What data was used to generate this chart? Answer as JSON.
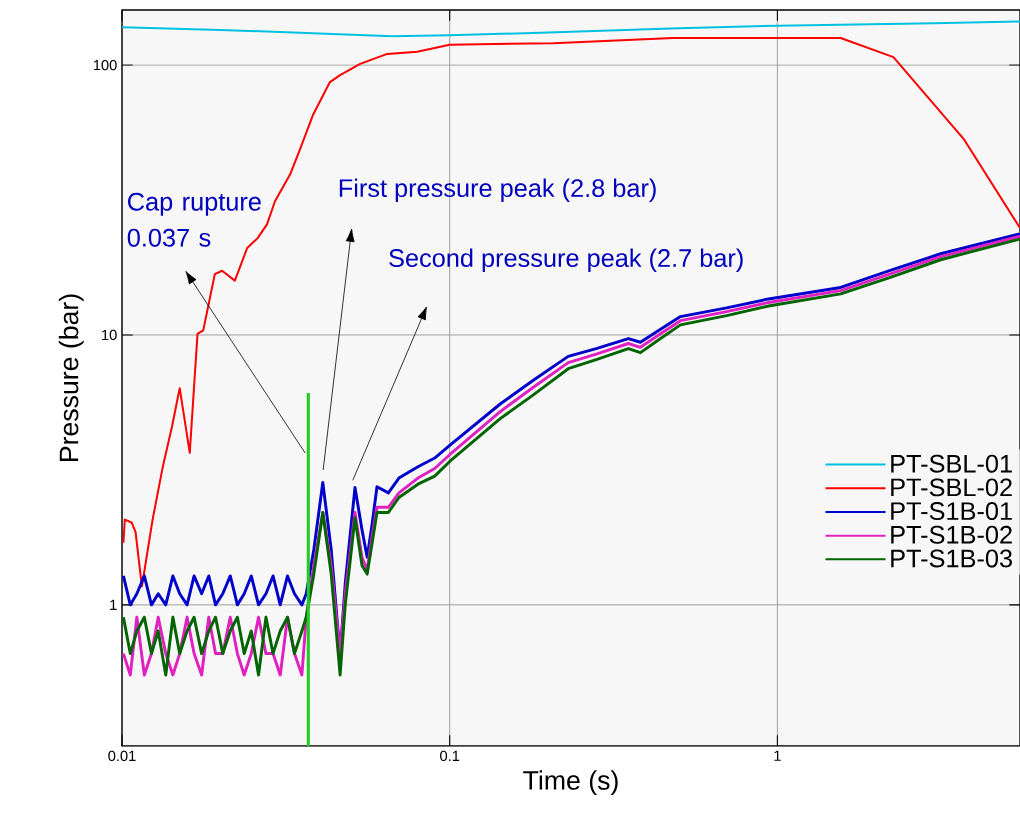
{
  "chart_data": {
    "type": "line",
    "xlabel": "Time (s)",
    "ylabel": "Pressure (bar)",
    "log": "xy",
    "grid": true,
    "legend": "right",
    "marker": "none",
    "line_style": "solid",
    "xlim": [
      0.01,
      5.5
    ],
    "ylim": [
      0.3,
      160
    ],
    "xticks": [
      0.01,
      0.1,
      1
    ],
    "yticks": [
      1,
      10,
      100
    ],
    "annotations": [
      "Cap rupture 0.037 s",
      "First pressure peak (2.8 bar)",
      "Second pressure peak (2.7 bar)"
    ],
    "series": [
      {
        "name": "PT-SBL-01",
        "color": "#00c0e0",
        "x": [
          0.01,
          0.02,
          0.04,
          0.067,
          0.1,
          0.2,
          0.5,
          1,
          1.55,
          3,
          5.5
        ],
        "values": [
          138,
          135,
          131,
          128,
          129,
          132,
          137,
          140,
          141,
          143,
          145
        ]
      },
      {
        "name": "PT-SBL-02",
        "color": "#ff0000",
        "x": [
          0.0101,
          0.0102,
          0.0107,
          0.011,
          0.0115,
          0.0124,
          0.0133,
          0.0142,
          0.015,
          0.0161,
          0.017,
          0.0177,
          0.0192,
          0.0202,
          0.0221,
          0.0241,
          0.0259,
          0.0277,
          0.0293,
          0.0326,
          0.035,
          0.0383,
          0.0431,
          0.0463,
          0.0533,
          0.0645,
          0.0796,
          0.1,
          0.207,
          0.481,
          0.973,
          1.56,
          2.26,
          3.7,
          5.5
        ],
        "values": [
          1.7,
          2.07,
          2.02,
          1.86,
          1.17,
          2.07,
          3.22,
          4.56,
          6.35,
          3.66,
          10.1,
          10.4,
          16.8,
          17.3,
          15.9,
          21,
          22.8,
          25.7,
          31.3,
          39.4,
          49,
          65.5,
          86.5,
          91.8,
          101,
          110,
          112,
          119,
          120.5,
          126,
          126,
          126,
          107,
          53.3,
          24.9
        ]
      },
      {
        "name": "PT-S1B-01",
        "color": "#0000cc",
        "x": [
          0.0101,
          0.0106,
          0.0111,
          0.0117,
          0.0123,
          0.0129,
          0.0136,
          0.0143,
          0.015,
          0.0158,
          0.0166,
          0.0175,
          0.0184,
          0.0193,
          0.0203,
          0.0214,
          0.0225,
          0.0236,
          0.0248,
          0.0261,
          0.0275,
          0.0289,
          0.0304,
          0.032,
          0.0336,
          0.0354,
          0.0365,
          0.0385,
          0.041,
          0.0435,
          0.0463,
          0.048,
          0.0514,
          0.054,
          0.056,
          0.058,
          0.06,
          0.065,
          0.07,
          0.08,
          0.09,
          0.1,
          0.1426,
          0.18,
          0.23,
          0.28,
          0.351,
          0.382,
          0.44,
          0.506,
          0.7,
          0.94,
          1.56,
          2.2,
          3.15,
          5.5
        ],
        "values": [
          1.28,
          1.0,
          1.1,
          1.28,
          1.0,
          1.1,
          1.0,
          1.28,
          1.1,
          1.0,
          1.28,
          1.1,
          1.28,
          1.0,
          1.1,
          1.28,
          1.0,
          1.1,
          1.28,
          1.0,
          1.1,
          1.28,
          1.0,
          1.28,
          1.1,
          1.0,
          1.1,
          1.6,
          2.84,
          1.6,
          0.65,
          1.2,
          2.72,
          1.9,
          1.5,
          2.0,
          2.74,
          2.6,
          2.95,
          3.25,
          3.5,
          3.9,
          5.55,
          6.8,
          8.33,
          8.9,
          9.7,
          9.4,
          10.5,
          11.7,
          12.6,
          13.6,
          15,
          17.3,
          20,
          23.7
        ]
      },
      {
        "name": "PT-S1B-02",
        "color": "#e020c0",
        "x": [
          0.0101,
          0.0106,
          0.0111,
          0.0117,
          0.0123,
          0.0129,
          0.0136,
          0.0143,
          0.015,
          0.0158,
          0.0166,
          0.0175,
          0.0184,
          0.0193,
          0.0203,
          0.0214,
          0.0225,
          0.0236,
          0.0248,
          0.0261,
          0.0275,
          0.0289,
          0.0304,
          0.032,
          0.0336,
          0.0354,
          0.0365,
          0.0385,
          0.041,
          0.0435,
          0.0463,
          0.048,
          0.0514,
          0.054,
          0.056,
          0.058,
          0.06,
          0.065,
          0.07,
          0.08,
          0.09,
          0.1,
          0.1426,
          0.18,
          0.23,
          0.28,
          0.351,
          0.382,
          0.44,
          0.506,
          0.7,
          0.94,
          1.56,
          2.2,
          3.15,
          5.5
        ],
        "values": [
          0.66,
          0.55,
          0.9,
          0.55,
          0.66,
          0.9,
          0.66,
          0.55,
          0.66,
          0.9,
          0.66,
          0.55,
          0.9,
          0.66,
          0.66,
          0.9,
          0.66,
          0.55,
          0.66,
          0.9,
          0.66,
          0.66,
          0.55,
          0.9,
          0.66,
          0.55,
          0.9,
          1.4,
          2.2,
          1.4,
          0.66,
          1.1,
          2.2,
          1.5,
          1.35,
          1.8,
          2.3,
          2.3,
          2.6,
          2.95,
          3.2,
          3.6,
          5.2,
          6.4,
          7.9,
          8.5,
          9.3,
          9.0,
          10.1,
          11.3,
          12.2,
          13.2,
          14.6,
          16.8,
          19.5,
          23.2
        ]
      },
      {
        "name": "PT-S1B-03",
        "color": "#006400",
        "x": [
          0.0101,
          0.0106,
          0.0111,
          0.0117,
          0.0123,
          0.0129,
          0.0136,
          0.0143,
          0.015,
          0.0158,
          0.0166,
          0.0175,
          0.0184,
          0.0193,
          0.0203,
          0.0214,
          0.0225,
          0.0236,
          0.0248,
          0.0261,
          0.0275,
          0.0289,
          0.0304,
          0.032,
          0.0336,
          0.0354,
          0.0365,
          0.0385,
          0.041,
          0.0435,
          0.0463,
          0.048,
          0.0514,
          0.054,
          0.056,
          0.058,
          0.06,
          0.065,
          0.07,
          0.08,
          0.09,
          0.1,
          0.1426,
          0.18,
          0.23,
          0.28,
          0.351,
          0.382,
          0.44,
          0.506,
          0.7,
          0.94,
          1.56,
          2.2,
          3.15,
          5.5
        ],
        "values": [
          0.9,
          0.66,
          0.8,
          0.9,
          0.66,
          0.8,
          0.55,
          0.9,
          0.66,
          0.8,
          0.9,
          0.66,
          0.8,
          0.9,
          0.66,
          0.8,
          0.9,
          0.66,
          0.8,
          0.55,
          0.9,
          0.66,
          0.8,
          0.9,
          0.66,
          0.8,
          0.9,
          1.3,
          2.2,
          1.3,
          0.55,
          1.0,
          2.1,
          1.4,
          1.3,
          1.7,
          2.2,
          2.2,
          2.5,
          2.8,
          3.0,
          3.4,
          4.9,
          6.0,
          7.5,
          8.1,
          8.9,
          8.6,
          9.7,
          10.9,
          11.8,
          12.8,
          14.2,
          16.3,
          19,
          22.7
        ]
      },
      {
        "color": "#22cc22",
        "x": [
          0.037,
          0.037
        ],
        "values": [
          0.3,
          6.1
        ]
      }
    ]
  }
}
